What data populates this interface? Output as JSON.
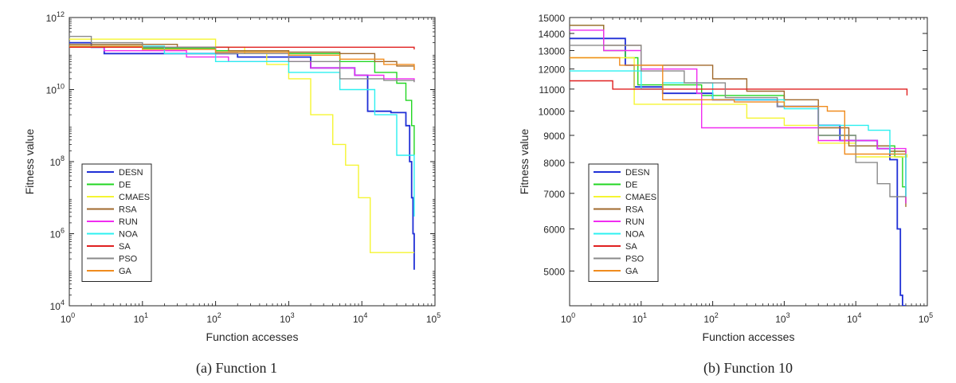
{
  "captions": [
    "(a)  Function 1",
    "(b)  Function 10"
  ],
  "legend_colors": {
    "DESN": "#1f2fd6",
    "DE": "#22d622",
    "CMAES": "#f5f532",
    "RSA": "#a0692c",
    "RUN": "#f02cf0",
    "NOA": "#2cf0f0",
    "SA": "#e02020",
    "PSO": "#8a8a8a",
    "GA": "#f08c1e"
  },
  "chart_data": [
    {
      "type": "line",
      "title": "",
      "xlabel": "Function accesses",
      "ylabel": "Fitness value",
      "xscale": "log",
      "yscale": "log",
      "xlim": [
        1,
        100000
      ],
      "ylim": [
        10000,
        1000000000000
      ],
      "x_ticks": [
        {
          "v": 1,
          "b": "10",
          "e": "0"
        },
        {
          "v": 10,
          "b": "10",
          "e": "1"
        },
        {
          "v": 100,
          "b": "10",
          "e": "2"
        },
        {
          "v": 1000,
          "b": "10",
          "e": "3"
        },
        {
          "v": 10000,
          "b": "10",
          "e": "4"
        },
        {
          "v": 100000,
          "b": "10",
          "e": "5"
        }
      ],
      "y_ticks": [
        {
          "v": 10000,
          "b": "10",
          "e": "4"
        },
        {
          "v": 1000000,
          "b": "10",
          "e": "6"
        },
        {
          "v": 100000000,
          "b": "10",
          "e": "8"
        },
        {
          "v": 10000000000,
          "b": "10",
          "e": "10"
        },
        {
          "v": 1000000000000,
          "b": "10",
          "e": "12"
        }
      ],
      "legend_position": "bottom-left",
      "series": [
        {
          "name": "DESN",
          "points": [
            [
              1,
              200000000000.0
            ],
            [
              2,
              150000000000.0
            ],
            [
              3,
              100000000000.0
            ],
            [
              50,
              100000000000.0
            ],
            [
              200,
              80000000000.0
            ],
            [
              2000,
              40000000000.0
            ],
            [
              8000,
              25000000000.0
            ],
            [
              12000,
              2500000000.0
            ],
            [
              25000,
              2300000000.0
            ],
            [
              40000,
              1000000000.0
            ],
            [
              45000,
              100000000.0
            ],
            [
              48000,
              10000000.0
            ],
            [
              50000,
              1000000.0
            ],
            [
              52000,
              100000.0
            ]
          ]
        },
        {
          "name": "DE",
          "points": [
            [
              1,
              180000000000.0
            ],
            [
              10,
              140000000000.0
            ],
            [
              100,
              120000000000.0
            ],
            [
              1000,
              100000000000.0
            ],
            [
              5000,
              60000000000.0
            ],
            [
              15000,
              30000000000.0
            ],
            [
              30000,
              15000000000.0
            ],
            [
              40000,
              5000000000.0
            ],
            [
              48000,
              1000000000.0
            ],
            [
              52000,
              150000000.0
            ]
          ]
        },
        {
          "name": "CMAES",
          "points": [
            [
              1,
              250000000000.0
            ],
            [
              100,
              150000000000.0
            ],
            [
              250,
              100000000000.0
            ],
            [
              500,
              50000000000.0
            ],
            [
              1000,
              20000000000.0
            ],
            [
              2000,
              2000000000.0
            ],
            [
              4000,
              300000000.0
            ],
            [
              6000,
              80000000.0
            ],
            [
              9000,
              10000000.0
            ],
            [
              13000,
              300000.0
            ],
            [
              52000,
              300000.0
            ]
          ]
        },
        {
          "name": "RSA",
          "points": [
            [
              1,
              180000000000.0
            ],
            [
              30,
              150000000000.0
            ],
            [
              150,
              120000000000.0
            ],
            [
              1000,
              110000000000.0
            ],
            [
              5000,
              100000000000.0
            ],
            [
              15000,
              60000000000.0
            ],
            [
              30000,
              45000000000.0
            ],
            [
              52000,
              35000000000.0
            ]
          ]
        },
        {
          "name": "RUN",
          "points": [
            [
              1,
              150000000000.0
            ],
            [
              3,
              120000000000.0
            ],
            [
              40,
              80000000000.0
            ],
            [
              150,
              60000000000.0
            ],
            [
              2000,
              40000000000.0
            ],
            [
              8000,
              25000000000.0
            ],
            [
              20000,
              20000000000.0
            ],
            [
              52000,
              17000000000.0
            ]
          ]
        },
        {
          "name": "NOA",
          "points": [
            [
              1,
              160000000000.0
            ],
            [
              20,
              100000000000.0
            ],
            [
              100,
              60000000000.0
            ],
            [
              1000,
              30000000000.0
            ],
            [
              5000,
              10000000000.0
            ],
            [
              15000,
              2000000000.0
            ],
            [
              30000,
              150000000.0
            ],
            [
              52000,
              3000000.0
            ]
          ]
        },
        {
          "name": "SA",
          "points": [
            [
              1,
              150000000000.0
            ],
            [
              52000,
              130000000000.0
            ]
          ]
        },
        {
          "name": "PSO",
          "points": [
            [
              1,
              300000000000.0
            ],
            [
              2,
              200000000000.0
            ],
            [
              10,
              150000000000.0
            ],
            [
              100,
              100000000000.0
            ],
            [
              1000,
              60000000000.0
            ],
            [
              5000,
              20000000000.0
            ],
            [
              20000,
              18000000000.0
            ],
            [
              52000,
              16000000000.0
            ]
          ]
        },
        {
          "name": "GA",
          "points": [
            [
              1,
              160000000000.0
            ],
            [
              10,
              130000000000.0
            ],
            [
              100,
              110000000000.0
            ],
            [
              1000,
              90000000000.0
            ],
            [
              5000,
              70000000000.0
            ],
            [
              20000,
              50000000000.0
            ],
            [
              52000,
              35000000000.0
            ]
          ]
        }
      ]
    },
    {
      "type": "line",
      "title": "",
      "xlabel": "Function accesses",
      "ylabel": "Fitness value",
      "xscale": "log",
      "yscale": "log",
      "xlim": [
        1,
        100000
      ],
      "ylim": [
        4300,
        15000
      ],
      "x_ticks": [
        {
          "v": 1,
          "b": "10",
          "e": "0"
        },
        {
          "v": 10,
          "b": "10",
          "e": "1"
        },
        {
          "v": 100,
          "b": "10",
          "e": "2"
        },
        {
          "v": 1000,
          "b": "10",
          "e": "3"
        },
        {
          "v": 10000,
          "b": "10",
          "e": "4"
        },
        {
          "v": 100000,
          "b": "10",
          "e": "5"
        }
      ],
      "y_ticks": [
        {
          "v": 5000,
          "t": "5000"
        },
        {
          "v": 6000,
          "t": "6000"
        },
        {
          "v": 7000,
          "t": "7000"
        },
        {
          "v": 8000,
          "t": "8000"
        },
        {
          "v": 9000,
          "t": "9000"
        },
        {
          "v": 10000,
          "t": "10000"
        },
        {
          "v": 11000,
          "t": "11000"
        },
        {
          "v": 12000,
          "t": "12000"
        },
        {
          "v": 13000,
          "t": "13000"
        },
        {
          "v": 14000,
          "t": "14000"
        },
        {
          "v": 15000,
          "t": "15000"
        }
      ],
      "legend_position": "bottom-left",
      "series": [
        {
          "name": "DESN",
          "points": [
            [
              1,
              13700
            ],
            [
              5,
              13700
            ],
            [
              6,
              12200
            ],
            [
              8,
              11100
            ],
            [
              20,
              10800
            ],
            [
              100,
              10500
            ],
            [
              800,
              10200
            ],
            [
              3000,
              9400
            ],
            [
              6000,
              8800
            ],
            [
              20000,
              8500
            ],
            [
              30000,
              8100
            ],
            [
              38000,
              6000
            ],
            [
              42000,
              4500
            ],
            [
              45000,
              4300
            ],
            [
              50000,
              4300
            ]
          ]
        },
        {
          "name": "DE",
          "points": [
            [
              1,
              14500
            ],
            [
              3,
              13000
            ],
            [
              6,
              12600
            ],
            [
              9,
              11200
            ],
            [
              70,
              10700
            ],
            [
              1000,
              10200
            ],
            [
              3000,
              9000
            ],
            [
              10000,
              8600
            ],
            [
              35000,
              8200
            ],
            [
              45000,
              7200
            ],
            [
              50000,
              6700
            ]
          ]
        },
        {
          "name": "CMAES",
          "points": [
            [
              1,
              12600
            ],
            [
              8,
              10300
            ],
            [
              60,
              10300
            ],
            [
              300,
              9700
            ],
            [
              1000,
              9400
            ],
            [
              3000,
              8700
            ],
            [
              10000,
              8200
            ],
            [
              52000,
              8300
            ]
          ]
        },
        {
          "name": "RSA",
          "points": [
            [
              1,
              14500
            ],
            [
              3,
              13300
            ],
            [
              10,
              12200
            ],
            [
              100,
              11500
            ],
            [
              300,
              10900
            ],
            [
              1000,
              10500
            ],
            [
              3000,
              9300
            ],
            [
              8000,
              8600
            ],
            [
              30000,
              8400
            ],
            [
              50000,
              6600
            ]
          ]
        },
        {
          "name": "RUN",
          "points": [
            [
              1,
              14200
            ],
            [
              3,
              13000
            ],
            [
              10,
              12000
            ],
            [
              60,
              10800
            ],
            [
              70,
              9300
            ],
            [
              500,
              9300
            ],
            [
              1000,
              9300
            ],
            [
              3000,
              8800
            ],
            [
              20000,
              8500
            ],
            [
              50000,
              6700
            ]
          ]
        },
        {
          "name": "NOA",
          "points": [
            [
              1,
              11900
            ],
            [
              5,
              11900
            ],
            [
              10,
              11000
            ],
            [
              20,
              11300
            ],
            [
              100,
              10500
            ],
            [
              1000,
              10100
            ],
            [
              3000,
              9400
            ],
            [
              15000,
              9200
            ],
            [
              30000,
              8300
            ],
            [
              50000,
              6900
            ]
          ]
        },
        {
          "name": "SA",
          "points": [
            [
              1,
              11400
            ],
            [
              3,
              11400
            ],
            [
              4,
              11000
            ],
            [
              52000,
              10700
            ]
          ]
        },
        {
          "name": "PSO",
          "points": [
            [
              1,
              13300
            ],
            [
              10,
              11900
            ],
            [
              40,
              11300
            ],
            [
              150,
              10600
            ],
            [
              800,
              10200
            ],
            [
              3000,
              9000
            ],
            [
              10000,
              8000
            ],
            [
              20000,
              7300
            ],
            [
              30000,
              6900
            ],
            [
              50000,
              6900
            ]
          ]
        },
        {
          "name": "GA",
          "points": [
            [
              1,
              12600
            ],
            [
              4,
              12600
            ],
            [
              5,
              12200
            ],
            [
              20,
              10500
            ],
            [
              200,
              10400
            ],
            [
              1000,
              10200
            ],
            [
              4000,
              10000
            ],
            [
              7000,
              8300
            ],
            [
              50000,
              8300
            ]
          ]
        }
      ]
    }
  ]
}
